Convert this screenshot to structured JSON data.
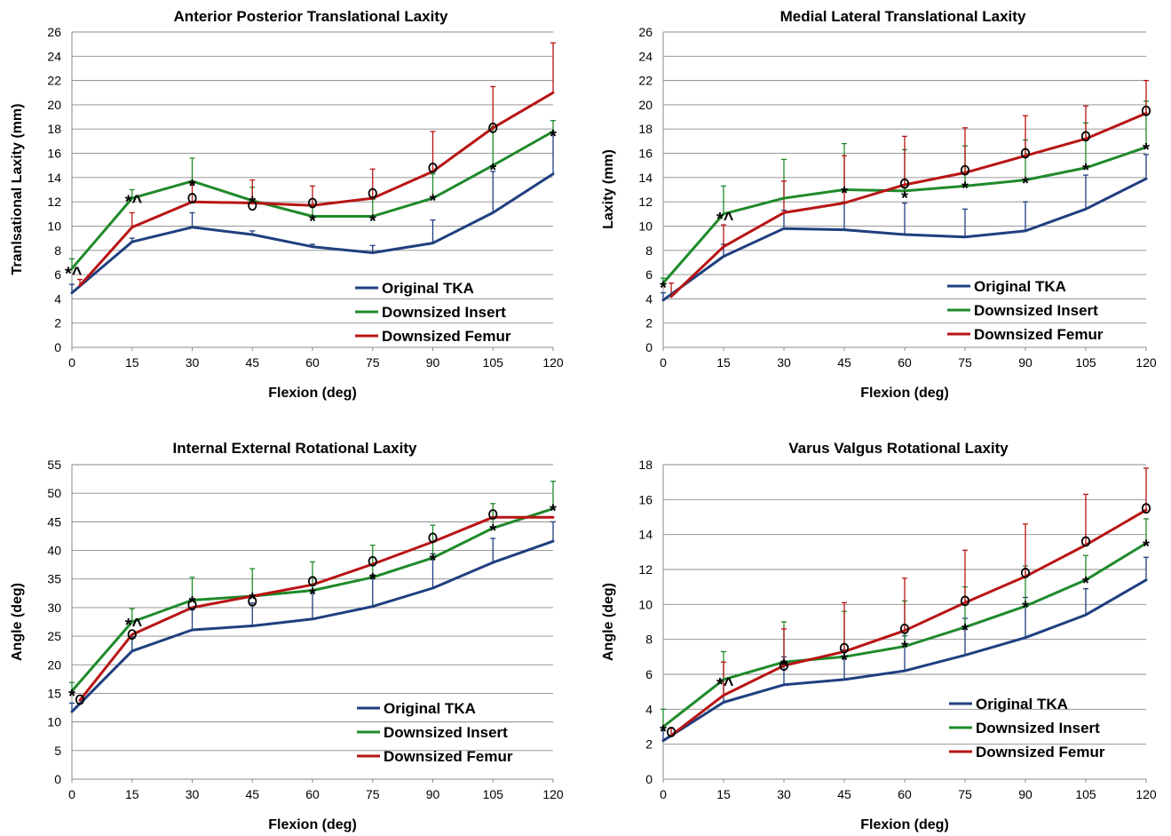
{
  "colors": {
    "original": "#1F3F7F",
    "insert": "#1F8A2A",
    "femur": "#B81414",
    "grid": "#8A8A8A"
  },
  "chart_data": [
    {
      "type": "line",
      "title": "Anterior Posterior Translational Laxity",
      "xlabel": "Flexion (deg)",
      "ylabel": "Tranlsational Laxity (mm)",
      "xlim": [
        0,
        120
      ],
      "ylim": [
        0,
        26
      ],
      "x_ticks": [
        0,
        15,
        30,
        45,
        60,
        75,
        90,
        105,
        120
      ],
      "y_ticks": [
        0,
        2,
        4,
        6,
        8,
        10,
        12,
        14,
        16,
        18,
        20,
        22,
        24,
        26
      ],
      "grid": true,
      "legend_position": "bottom-right",
      "series": [
        {
          "name": "Original TKA",
          "color_key": "original",
          "x": [
            0,
            15,
            30,
            45,
            60,
            75,
            90,
            105,
            120
          ],
          "y": [
            4.5,
            8.7,
            9.9,
            9.3,
            8.3,
            7.8,
            8.6,
            11.1,
            14.3
          ],
          "err": [
            0.7,
            0.3,
            1.2,
            0.3,
            0.2,
            0.6,
            1.9,
            3.4,
            3.4
          ]
        },
        {
          "name": "Downsized Insert",
          "color_key": "insert",
          "x": [
            0,
            15,
            30,
            45,
            60,
            75,
            90,
            105,
            120
          ],
          "y": [
            6.5,
            12.3,
            13.7,
            12.1,
            10.8,
            10.8,
            12.3,
            15.0,
            17.8
          ],
          "err": [
            0.8,
            0.7,
            1.9,
            1.1,
            1.0,
            1.4,
            2.0,
            3.2,
            0.9
          ]
        },
        {
          "name": "Downsized Femur",
          "color_key": "femur",
          "x": [
            2,
            15,
            30,
            45,
            60,
            75,
            90,
            105,
            120
          ],
          "y": [
            5.1,
            9.9,
            12.0,
            11.9,
            11.7,
            12.3,
            14.5,
            18.1,
            21.0
          ],
          "err": [
            0.5,
            1.2,
            1.5,
            1.9,
            1.6,
            2.4,
            3.3,
            3.4,
            4.1
          ]
        }
      ],
      "annotations": [
        {
          "text": "*^",
          "x": 0,
          "y": 6.5
        },
        {
          "text": "*^",
          "x": 15,
          "y": 12.4
        },
        {
          "text": "*",
          "x": 30,
          "y": 13.7
        },
        {
          "text": "o",
          "x": 30,
          "y": 12.3
        },
        {
          "text": "*",
          "x": 45,
          "y": 12.3
        },
        {
          "text": "o",
          "x": 45,
          "y": 11.7
        },
        {
          "text": "o",
          "x": 60,
          "y": 11.9
        },
        {
          "text": "*",
          "x": 60,
          "y": 10.8
        },
        {
          "text": "o",
          "x": 75,
          "y": 12.7
        },
        {
          "text": "*",
          "x": 75,
          "y": 10.8
        },
        {
          "text": "o",
          "x": 90,
          "y": 14.8
        },
        {
          "text": "*",
          "x": 90,
          "y": 12.5
        },
        {
          "text": "o",
          "x": 105,
          "y": 18.1
        },
        {
          "text": "*",
          "x": 105,
          "y": 15.0
        },
        {
          "text": "*",
          "x": 120,
          "y": 17.8
        }
      ]
    },
    {
      "type": "line",
      "title": "Medial Lateral Translational Laxity",
      "xlabel": "Flexion (deg)",
      "ylabel": "Laxity (mm)",
      "xlim": [
        0,
        120
      ],
      "ylim": [
        0,
        26
      ],
      "x_ticks": [
        0,
        15,
        30,
        45,
        60,
        75,
        90,
        105,
        120
      ],
      "y_ticks": [
        0,
        2,
        4,
        6,
        8,
        10,
        12,
        14,
        16,
        18,
        20,
        22,
        24,
        26
      ],
      "grid": true,
      "legend_position": "bottom-right",
      "series": [
        {
          "name": "Original TKA",
          "color_key": "original",
          "x": [
            0,
            15,
            30,
            45,
            60,
            75,
            90,
            105,
            120
          ],
          "y": [
            3.9,
            7.5,
            9.8,
            9.7,
            9.3,
            9.1,
            9.6,
            11.4,
            13.9
          ],
          "err": [
            0.6,
            1.0,
            1.5,
            2.3,
            2.6,
            2.3,
            2.4,
            2.8,
            2.0
          ]
        },
        {
          "name": "Downsized Insert",
          "color_key": "insert",
          "x": [
            0,
            15,
            30,
            45,
            60,
            75,
            90,
            105,
            120
          ],
          "y": [
            5.3,
            11.0,
            12.3,
            13.0,
            12.9,
            13.3,
            13.8,
            14.8,
            16.5
          ],
          "err": [
            0.4,
            2.3,
            3.2,
            3.8,
            3.4,
            3.3,
            3.3,
            3.7,
            3.8
          ]
        },
        {
          "name": "Downsized Femur",
          "color_key": "femur",
          "x": [
            2,
            15,
            30,
            45,
            60,
            75,
            90,
            105,
            120
          ],
          "y": [
            4.2,
            8.3,
            11.1,
            11.9,
            13.4,
            14.4,
            15.8,
            17.2,
            19.3
          ],
          "err": [
            1.1,
            1.8,
            2.6,
            3.9,
            4.0,
            3.7,
            3.3,
            2.7,
            2.7
          ]
        }
      ],
      "annotations": [
        {
          "text": "*",
          "x": 0,
          "y": 5.3
        },
        {
          "text": "*^",
          "x": 15,
          "y": 11.0
        },
        {
          "text": "*",
          "x": 45,
          "y": 13.1
        },
        {
          "text": "o",
          "x": 60,
          "y": 13.5
        },
        {
          "text": "*",
          "x": 60,
          "y": 12.7
        },
        {
          "text": "o",
          "x": 75,
          "y": 14.6
        },
        {
          "text": "*",
          "x": 75,
          "y": 13.5
        },
        {
          "text": "o",
          "x": 90,
          "y": 16.0
        },
        {
          "text": "*",
          "x": 90,
          "y": 13.9
        },
        {
          "text": "o",
          "x": 105,
          "y": 17.4
        },
        {
          "text": "*",
          "x": 105,
          "y": 15.0
        },
        {
          "text": "o",
          "x": 120,
          "y": 19.5
        },
        {
          "text": "*",
          "x": 120,
          "y": 16.7
        }
      ]
    },
    {
      "type": "line",
      "title": "Internal External Rotational Laxity",
      "xlabel": "Flexion (deg)",
      "ylabel": "Angle (deg)",
      "xlim": [
        0,
        120
      ],
      "ylim": [
        0,
        55
      ],
      "x_ticks": [
        0,
        15,
        30,
        45,
        60,
        75,
        90,
        105,
        120
      ],
      "y_ticks": [
        0,
        5,
        10,
        15,
        20,
        25,
        30,
        35,
        40,
        45,
        50,
        55
      ],
      "grid": true,
      "legend_position": "bottom-right",
      "series": [
        {
          "name": "Original TKA",
          "color_key": "original",
          "x": [
            0,
            15,
            30,
            45,
            60,
            75,
            90,
            105,
            120
          ],
          "y": [
            11.8,
            22.4,
            26.1,
            26.8,
            28.0,
            30.2,
            33.4,
            37.9,
            41.6
          ],
          "err": [
            1.5,
            2.5,
            3.5,
            4.0,
            5.0,
            5.5,
            6.0,
            4.2,
            3.4
          ]
        },
        {
          "name": "Downsized Insert",
          "color_key": "insert",
          "x": [
            0,
            15,
            30,
            45,
            60,
            75,
            90,
            105,
            120
          ],
          "y": [
            15.4,
            27.5,
            31.3,
            32.0,
            33.0,
            35.3,
            38.7,
            43.9,
            47.3
          ],
          "err": [
            1.5,
            2.3,
            4.0,
            4.8,
            5.0,
            5.6,
            5.7,
            4.3,
            4.8
          ]
        },
        {
          "name": "Downsized Femur",
          "color_key": "femur",
          "x": [
            2,
            15,
            30,
            45,
            60,
            75,
            90,
            105,
            120
          ],
          "y": [
            13.8,
            25.3,
            30.0,
            32.0,
            34.0,
            37.6,
            41.5,
            45.8,
            45.8
          ]
        }
      ],
      "annotations": [
        {
          "text": "*",
          "x": 0,
          "y": 15.4
        },
        {
          "text": "o",
          "x": 2,
          "y": 13.9
        },
        {
          "text": "*^",
          "x": 15,
          "y": 27.8
        },
        {
          "text": "o",
          "x": 15,
          "y": 25.3
        },
        {
          "text": "*",
          "x": 30,
          "y": 31.7
        },
        {
          "text": "o",
          "x": 30,
          "y": 30.5
        },
        {
          "text": "*",
          "x": 45,
          "y": 32.3
        },
        {
          "text": "o",
          "x": 45,
          "y": 31.1
        },
        {
          "text": "o",
          "x": 60,
          "y": 34.6
        },
        {
          "text": "*",
          "x": 60,
          "y": 33.2
        },
        {
          "text": "o",
          "x": 75,
          "y": 38.1
        },
        {
          "text": "*",
          "x": 75,
          "y": 35.7
        },
        {
          "text": "o",
          "x": 90,
          "y": 42.2
        },
        {
          "text": "*",
          "x": 90,
          "y": 39.1
        },
        {
          "text": "o",
          "x": 105,
          "y": 46.3
        },
        {
          "text": "*",
          "x": 105,
          "y": 44.3
        },
        {
          "text": "*",
          "x": 120,
          "y": 47.8
        }
      ]
    },
    {
      "type": "line",
      "title": "Varus Valgus Rotational Laxity",
      "xlabel": "Flexion (deg)",
      "ylabel": "Angle (deg)",
      "xlim": [
        0,
        120
      ],
      "ylim": [
        0,
        18
      ],
      "x_ticks": [
        0,
        15,
        30,
        45,
        60,
        75,
        90,
        105,
        120
      ],
      "y_ticks": [
        0,
        2,
        4,
        6,
        8,
        10,
        12,
        14,
        16,
        18
      ],
      "grid": true,
      "legend_position": "bottom-right",
      "series": [
        {
          "name": "Original TKA",
          "color_key": "original",
          "x": [
            0,
            15,
            30,
            45,
            60,
            75,
            90,
            105,
            120
          ],
          "y": [
            2.2,
            4.4,
            5.4,
            5.7,
            6.2,
            7.1,
            8.1,
            9.4,
            11.4
          ],
          "err": [
            0.6,
            1.3,
            1.6,
            1.7,
            2.0,
            2.1,
            2.3,
            1.5,
            1.3
          ]
        },
        {
          "name": "Downsized Insert",
          "color_key": "insert",
          "x": [
            0,
            15,
            30,
            45,
            60,
            75,
            90,
            105,
            120
          ],
          "y": [
            3.0,
            5.7,
            6.7,
            7.0,
            7.6,
            8.7,
            9.9,
            11.4,
            13.5
          ],
          "err": [
            1.0,
            1.6,
            2.3,
            2.6,
            2.6,
            2.3,
            2.3,
            1.4,
            1.4
          ]
        },
        {
          "name": "Downsized Femur",
          "color_key": "femur",
          "x": [
            2,
            15,
            30,
            45,
            60,
            75,
            90,
            105,
            120
          ],
          "y": [
            2.5,
            4.8,
            6.5,
            7.3,
            8.5,
            10.1,
            11.6,
            13.4,
            15.4
          ],
          "err": [
            0.4,
            1.9,
            2.1,
            2.8,
            3.0,
            3.0,
            3.0,
            2.9,
            2.4
          ]
        }
      ],
      "annotations": [
        {
          "text": "*",
          "x": 0,
          "y": 3.0
        },
        {
          "text": "o",
          "x": 2,
          "y": 2.7
        },
        {
          "text": "*^",
          "x": 15,
          "y": 5.7
        },
        {
          "text": "*",
          "x": 30,
          "y": 6.8
        },
        {
          "text": "o",
          "x": 30,
          "y": 6.5
        },
        {
          "text": "o",
          "x": 45,
          "y": 7.5
        },
        {
          "text": "*",
          "x": 45,
          "y": 7.1
        },
        {
          "text": "o",
          "x": 60,
          "y": 8.6
        },
        {
          "text": "*",
          "x": 60,
          "y": 7.8
        },
        {
          "text": "o",
          "x": 75,
          "y": 10.2
        },
        {
          "text": "*",
          "x": 75,
          "y": 8.8
        },
        {
          "text": "o",
          "x": 90,
          "y": 11.8
        },
        {
          "text": "*",
          "x": 90,
          "y": 10.1
        },
        {
          "text": "o",
          "x": 105,
          "y": 13.6
        },
        {
          "text": "*",
          "x": 105,
          "y": 11.5
        },
        {
          "text": "o",
          "x": 120,
          "y": 15.5
        },
        {
          "text": "*",
          "x": 120,
          "y": 13.6
        }
      ]
    }
  ]
}
